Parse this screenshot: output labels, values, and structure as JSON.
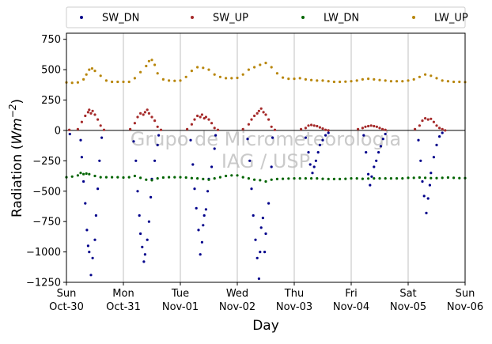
{
  "chart_data": {
    "type": "scatter",
    "xlabel": "Day",
    "ylabel_prefix": "Radiation (",
    "ylabel_unit": "Wm",
    "ylabel_exp": "−2",
    "ylabel_suffix": ")",
    "xlim": [
      0,
      7
    ],
    "ylim": [
      -1250,
      800
    ],
    "yticks": [
      750,
      500,
      250,
      0,
      -250,
      -500,
      -750,
      -1000,
      -1250
    ],
    "ytick_labels": [
      "750",
      "500",
      "250",
      "0",
      "−250",
      "−500",
      "−750",
      "−1000",
      "−1250"
    ],
    "xticks": [
      0,
      1,
      2,
      3,
      4,
      5,
      6,
      7
    ],
    "xtick_labels_day": [
      "Sun",
      "Mon",
      "Tue",
      "Wed",
      "Thu",
      "Fri",
      "Sat",
      "Sun"
    ],
    "xtick_labels_date": [
      "Oct-30",
      "Oct-31",
      "Nov-01",
      "Nov-02",
      "Nov-03",
      "Nov-04",
      "Nov-05",
      "Nov-06"
    ],
    "grid": "vertical",
    "zero_line": 0,
    "legend_position": "top",
    "watermark": [
      "Grupo de Micrometeorologia",
      "IAG / USP"
    ],
    "series": [
      {
        "name": "SW_DN",
        "color": "#00008b",
        "x": [
          0.06,
          0.25,
          0.27,
          0.3,
          0.33,
          0.36,
          0.38,
          0.4,
          0.43,
          0.46,
          0.5,
          0.52,
          0.55,
          0.58,
          0.62,
          1.18,
          1.22,
          1.25,
          1.28,
          1.3,
          1.33,
          1.36,
          1.38,
          1.42,
          1.45,
          1.48,
          1.5,
          1.55,
          1.6,
          1.62,
          2.18,
          2.22,
          2.25,
          2.28,
          2.32,
          2.35,
          2.38,
          2.4,
          2.42,
          2.45,
          2.48,
          2.5,
          2.55,
          2.6,
          2.62,
          3.18,
          3.22,
          3.25,
          3.28,
          3.32,
          3.35,
          3.38,
          3.4,
          3.42,
          3.45,
          3.48,
          3.5,
          3.55,
          3.6,
          3.62,
          4.2,
          4.25,
          4.28,
          4.32,
          4.35,
          4.38,
          4.42,
          4.45,
          4.5,
          4.55,
          4.6,
          5.22,
          5.26,
          5.3,
          5.33,
          5.36,
          5.4,
          5.44,
          5.48,
          5.52,
          5.56,
          5.6,
          6.18,
          6.22,
          6.25,
          6.28,
          6.32,
          6.35,
          6.38,
          6.4,
          6.45,
          6.5,
          6.55,
          6.6
        ],
        "y": [
          -30,
          -80,
          -220,
          -420,
          -600,
          -820,
          -950,
          -1000,
          -1190,
          -1050,
          -900,
          -700,
          -480,
          -250,
          -60,
          -90,
          -250,
          -500,
          -700,
          -850,
          -960,
          -1080,
          -1020,
          -900,
          -750,
          -550,
          -400,
          -250,
          -120,
          -40,
          -80,
          -280,
          -480,
          -640,
          -820,
          -1020,
          -920,
          -780,
          -700,
          -650,
          -500,
          -400,
          -300,
          -150,
          -40,
          -70,
          -250,
          -480,
          -700,
          -900,
          -1050,
          -1220,
          -1000,
          -800,
          -720,
          -1000,
          -850,
          -600,
          -300,
          -60,
          -60,
          -180,
          -280,
          -350,
          -300,
          -250,
          -180,
          -120,
          -80,
          -40,
          -20,
          -40,
          -180,
          -360,
          -450,
          -380,
          -300,
          -250,
          -180,
          -130,
          -70,
          -30,
          -80,
          -250,
          -420,
          -540,
          -680,
          -560,
          -450,
          -350,
          -220,
          -120,
          -50,
          -20
        ]
      },
      {
        "name": "SW_UP",
        "color": "#a52a2a",
        "x": [
          0.05,
          0.2,
          0.27,
          0.33,
          0.38,
          0.4,
          0.43,
          0.46,
          0.5,
          0.55,
          0.6,
          0.66,
          1.12,
          1.2,
          1.25,
          1.3,
          1.35,
          1.38,
          1.42,
          1.45,
          1.5,
          1.55,
          1.6,
          1.66,
          2.12,
          2.2,
          2.25,
          2.3,
          2.35,
          2.38,
          2.42,
          2.45,
          2.5,
          2.55,
          2.6,
          2.66,
          3.1,
          3.2,
          3.25,
          3.3,
          3.35,
          3.38,
          3.42,
          3.46,
          3.5,
          3.55,
          3.6,
          3.66,
          4.12,
          4.2,
          4.25,
          4.3,
          4.35,
          4.4,
          4.45,
          4.5,
          4.55,
          4.6,
          5.12,
          5.2,
          5.25,
          5.3,
          5.35,
          5.4,
          5.45,
          5.5,
          5.55,
          5.6,
          6.12,
          6.2,
          6.25,
          6.3,
          6.35,
          6.4,
          6.45,
          6.5,
          6.55,
          6.6,
          6.65
        ],
        "y": [
          5,
          10,
          70,
          120,
          150,
          170,
          140,
          160,
          130,
          90,
          40,
          5,
          10,
          60,
          110,
          140,
          130,
          150,
          170,
          140,
          110,
          80,
          30,
          5,
          10,
          50,
          90,
          120,
          110,
          130,
          100,
          110,
          90,
          60,
          20,
          5,
          10,
          50,
          90,
          120,
          140,
          160,
          180,
          150,
          130,
          90,
          30,
          5,
          10,
          20,
          40,
          45,
          40,
          35,
          25,
          15,
          5,
          0,
          10,
          20,
          30,
          35,
          40,
          35,
          30,
          20,
          10,
          5,
          10,
          40,
          80,
          100,
          90,
          95,
          70,
          40,
          20,
          10,
          0
        ]
      },
      {
        "name": "LW_DN",
        "color": "#006400",
        "x": [
          0,
          0.1,
          0.2,
          0.25,
          0.3,
          0.35,
          0.4,
          0.5,
          0.6,
          0.7,
          0.8,
          0.9,
          1.0,
          1.1,
          1.2,
          1.3,
          1.4,
          1.5,
          1.6,
          1.7,
          1.8,
          1.9,
          2.0,
          2.1,
          2.2,
          2.3,
          2.4,
          2.5,
          2.6,
          2.7,
          2.8,
          2.9,
          3.0,
          3.1,
          3.2,
          3.3,
          3.4,
          3.5,
          3.6,
          3.7,
          3.8,
          3.9,
          4.0,
          4.1,
          4.2,
          4.3,
          4.4,
          4.5,
          4.6,
          4.7,
          4.8,
          4.9,
          5.0,
          5.1,
          5.2,
          5.3,
          5.4,
          5.5,
          5.6,
          5.7,
          5.8,
          5.9,
          6.0,
          6.1,
          6.2,
          6.3,
          6.4,
          6.5,
          6.6,
          6.7,
          6.8,
          6.9,
          7.0
        ],
        "y": [
          -385,
          -380,
          -370,
          -350,
          -360,
          -355,
          -360,
          -375,
          -385,
          -385,
          -385,
          -385,
          -388,
          -385,
          -375,
          -390,
          -405,
          -410,
          -395,
          -388,
          -385,
          -385,
          -385,
          -388,
          -392,
          -395,
          -400,
          -405,
          -395,
          -385,
          -375,
          -370,
          -370,
          -385,
          -395,
          -405,
          -410,
          -420,
          -405,
          -400,
          -398,
          -396,
          -395,
          -395,
          -395,
          -395,
          -395,
          -398,
          -400,
          -400,
          -400,
          -398,
          -395,
          -395,
          -398,
          -396,
          -395,
          -395,
          -395,
          -395,
          -395,
          -395,
          -390,
          -390,
          -388,
          -390,
          -392,
          -392,
          -390,
          -388,
          -390,
          -392,
          -392
        ]
      },
      {
        "name": "LW_UP",
        "color": "#b8860b",
        "x": [
          0,
          0.1,
          0.2,
          0.3,
          0.35,
          0.4,
          0.45,
          0.5,
          0.6,
          0.7,
          0.8,
          0.9,
          1.0,
          1.1,
          1.2,
          1.3,
          1.4,
          1.45,
          1.5,
          1.55,
          1.6,
          1.7,
          1.8,
          1.9,
          2.0,
          2.1,
          2.2,
          2.3,
          2.4,
          2.5,
          2.6,
          2.7,
          2.8,
          2.9,
          3.0,
          3.1,
          3.2,
          3.3,
          3.4,
          3.5,
          3.6,
          3.7,
          3.8,
          3.9,
          4.0,
          4.1,
          4.2,
          4.3,
          4.4,
          4.5,
          4.6,
          4.7,
          4.8,
          4.9,
          5.0,
          5.1,
          5.2,
          5.3,
          5.4,
          5.5,
          5.6,
          5.7,
          5.8,
          5.9,
          6.0,
          6.1,
          6.2,
          6.3,
          6.4,
          6.5,
          6.6,
          6.7,
          6.8,
          6.9,
          7.0
        ],
        "y": [
          395,
          392,
          395,
          420,
          460,
          500,
          510,
          490,
          450,
          410,
          400,
          400,
          400,
          400,
          430,
          480,
          530,
          570,
          580,
          540,
          470,
          420,
          410,
          408,
          410,
          440,
          490,
          520,
          515,
          500,
          460,
          440,
          430,
          430,
          432,
          460,
          500,
          520,
          540,
          555,
          520,
          470,
          435,
          425,
          425,
          430,
          420,
          415,
          410,
          410,
          405,
          400,
          400,
          402,
          405,
          410,
          420,
          425,
          420,
          415,
          410,
          405,
          405,
          405,
          410,
          420,
          440,
          460,
          450,
          430,
          410,
          405,
          400,
          400,
          398
        ]
      }
    ]
  }
}
